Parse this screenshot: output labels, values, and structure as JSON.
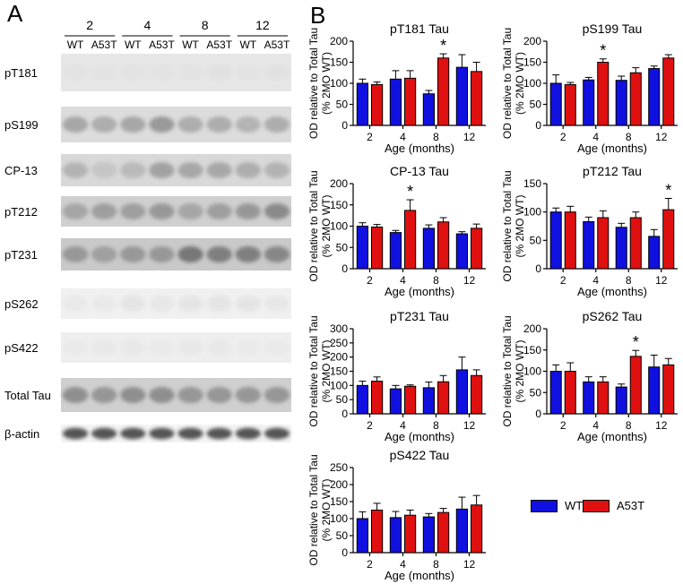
{
  "panels": {
    "a": "A",
    "b": "B"
  },
  "blot": {
    "ages": [
      "2",
      "4",
      "8",
      "12"
    ],
    "genotypes": [
      "WT",
      "A53T"
    ],
    "rows": [
      "pT181",
      "pS199",
      "CP-13",
      "pT212",
      "pT231",
      "pS262",
      "pS422",
      "Total Tau",
      "β-actin"
    ]
  },
  "colors": {
    "WT": "#1010e0",
    "A53T": "#e01010"
  },
  "legend": [
    {
      "key": "WT",
      "label": "WT"
    },
    {
      "key": "A53T",
      "label": "A53T"
    }
  ],
  "chart_data": [
    {
      "type": "bar",
      "title": "pT181 Tau",
      "xlabel": "Age (months)",
      "ylabel": "OD relative to Total Tau (% 2MO WT)",
      "categories": [
        "2",
        "4",
        "8",
        "12"
      ],
      "ylim": [
        0,
        200
      ],
      "yticks": [
        0,
        50,
        100,
        150,
        200
      ],
      "series": [
        {
          "name": "WT",
          "values": [
            100,
            110,
            75,
            138
          ],
          "errors": [
            10,
            20,
            8,
            30
          ]
        },
        {
          "name": "A53T",
          "values": [
            97,
            112,
            160,
            128
          ],
          "errors": [
            6,
            18,
            10,
            22
          ]
        }
      ],
      "annotations": [
        {
          "text": "*",
          "category": "8"
        }
      ]
    },
    {
      "type": "bar",
      "title": "pS199 Tau",
      "xlabel": "Age (months)",
      "ylabel": "OD relative to Total Tau (% 2MO WT)",
      "categories": [
        "2",
        "4",
        "8",
        "12"
      ],
      "ylim": [
        0,
        200
      ],
      "yticks": [
        0,
        50,
        100,
        150,
        200
      ],
      "series": [
        {
          "name": "WT",
          "values": [
            100,
            108,
            107,
            135
          ],
          "errors": [
            20,
            6,
            10,
            6
          ]
        },
        {
          "name": "A53T",
          "values": [
            97,
            150,
            125,
            160
          ],
          "errors": [
            5,
            8,
            12,
            8
          ]
        }
      ],
      "annotations": [
        {
          "text": "*",
          "category": "4"
        }
      ]
    },
    {
      "type": "bar",
      "title": "CP-13 Tau",
      "xlabel": "Age (months)",
      "ylabel": "OD relative to Total Tau (% 2MO WT)",
      "categories": [
        "2",
        "4",
        "8",
        "12"
      ],
      "ylim": [
        0,
        200
      ],
      "yticks": [
        0,
        50,
        100,
        150,
        200
      ],
      "series": [
        {
          "name": "WT",
          "values": [
            100,
            85,
            95,
            82
          ],
          "errors": [
            8,
            5,
            8,
            5
          ]
        },
        {
          "name": "A53T",
          "values": [
            98,
            137,
            110,
            95
          ],
          "errors": [
            6,
            25,
            10,
            10
          ]
        }
      ],
      "annotations": [
        {
          "text": "*",
          "category": "4"
        }
      ]
    },
    {
      "type": "bar",
      "title": "pT212 Tau",
      "xlabel": "Age (months)",
      "ylabel": "OD relative to Total Tau (% 2MO WT)",
      "categories": [
        "2",
        "4",
        "8",
        "12"
      ],
      "ylim": [
        0,
        150
      ],
      "yticks": [
        0,
        50,
        100,
        150
      ],
      "series": [
        {
          "name": "WT",
          "values": [
            100,
            83,
            73,
            57
          ],
          "errors": [
            7,
            8,
            7,
            12
          ]
        },
        {
          "name": "A53T",
          "values": [
            100,
            90,
            90,
            104
          ],
          "errors": [
            10,
            12,
            10,
            20
          ]
        }
      ],
      "annotations": [
        {
          "text": "*",
          "category": "12"
        }
      ]
    },
    {
      "type": "bar",
      "title": "pT231 Tau",
      "xlabel": "Age (months)",
      "ylabel": "OD relative to Total Tau (% 2MO WT)",
      "categories": [
        "2",
        "4",
        "8",
        "12"
      ],
      "ylim": [
        0,
        300
      ],
      "yticks": [
        0,
        50,
        100,
        150,
        200,
        250,
        300
      ],
      "series": [
        {
          "name": "WT",
          "values": [
            100,
            88,
            92,
            155
          ],
          "errors": [
            15,
            12,
            20,
            45
          ]
        },
        {
          "name": "A53T",
          "values": [
            115,
            97,
            113,
            135
          ],
          "errors": [
            15,
            5,
            22,
            20
          ]
        }
      ],
      "annotations": []
    },
    {
      "type": "bar",
      "title": "pS262 Tau",
      "xlabel": "Age (months)",
      "ylabel": "OD relative to Total Tau (% 2MO WT)",
      "categories": [
        "2",
        "4",
        "8",
        "12"
      ],
      "ylim": [
        0,
        200
      ],
      "yticks": [
        0,
        50,
        100,
        150,
        200
      ],
      "series": [
        {
          "name": "WT",
          "values": [
            100,
            75,
            63,
            110
          ],
          "errors": [
            15,
            12,
            7,
            28
          ]
        },
        {
          "name": "A53T",
          "values": [
            100,
            75,
            135,
            115
          ],
          "errors": [
            20,
            12,
            14,
            15
          ]
        }
      ],
      "annotations": [
        {
          "text": "*",
          "category": "8"
        }
      ]
    },
    {
      "type": "bar",
      "title": "pS422 Tau",
      "xlabel": "Age (months)",
      "ylabel": "OD relative to Total Tau (% 2MO WT)",
      "categories": [
        "2",
        "4",
        "8",
        "12"
      ],
      "ylim": [
        0,
        250
      ],
      "yticks": [
        0,
        50,
        100,
        150,
        200,
        250
      ],
      "series": [
        {
          "name": "WT",
          "values": [
            100,
            103,
            105,
            128
          ],
          "errors": [
            20,
            18,
            10,
            35
          ]
        },
        {
          "name": "A53T",
          "values": [
            125,
            110,
            118,
            140
          ],
          "errors": [
            20,
            15,
            12,
            28
          ]
        }
      ],
      "annotations": []
    }
  ]
}
